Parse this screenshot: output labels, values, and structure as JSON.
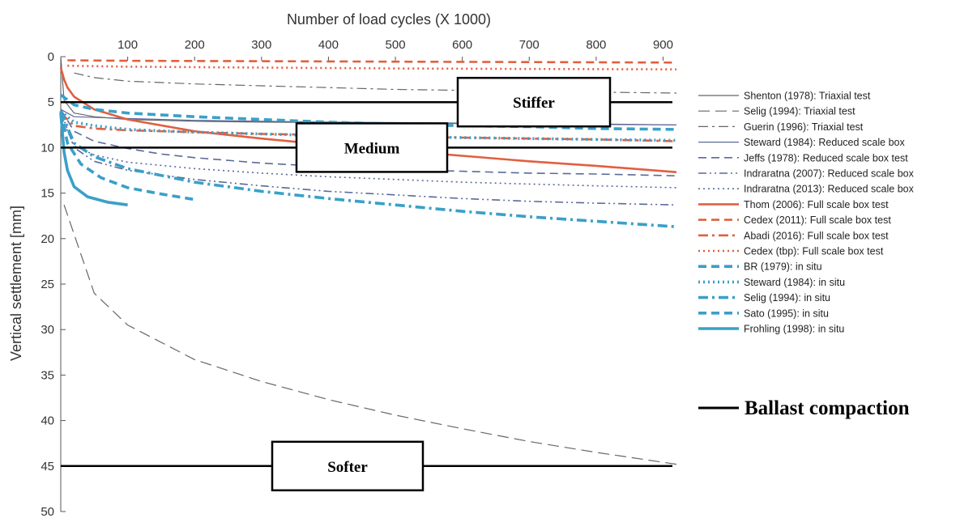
{
  "chart_data": {
    "type": "line",
    "xlabel": "Number of load cycles (X 1000)",
    "ylabel": "Vertical settlement [mm]",
    "xlim": [
      0,
      920
    ],
    "ylim": [
      0,
      50
    ],
    "x_axis_position": "top",
    "y_axis_reversed": true,
    "x_ticks": [
      100,
      200,
      300,
      400,
      500,
      600,
      700,
      800,
      900
    ],
    "y_ticks": [
      0,
      5,
      10,
      15,
      20,
      25,
      30,
      35,
      40,
      45,
      50
    ],
    "grid": false,
    "legend_position": "right",
    "colors": {
      "gray": "#666666",
      "grayblue": "#5a6a9a",
      "red": "#e06040",
      "blue": "#3aa0c8",
      "black": "#000000"
    },
    "series": [
      {
        "name": "Shenton (1978): Triaxial test",
        "color": "gray",
        "style": "solid",
        "width": 1.2,
        "x": [
          0,
          5,
          20,
          50,
          100,
          200,
          300,
          500,
          700,
          920
        ],
        "y": [
          0,
          4.8,
          6.2,
          6.6,
          6.9,
          7.1,
          7.2,
          7.3,
          7.4,
          7.5
        ]
      },
      {
        "name": "Selig (1994): Triaxial test",
        "color": "gray",
        "style": "longdash",
        "width": 1.2,
        "x": [
          5,
          50,
          100,
          200,
          300,
          400,
          500,
          600,
          700,
          800,
          920
        ],
        "y": [
          16.3,
          26,
          29.5,
          33.3,
          35.7,
          37.7,
          39.4,
          40.9,
          42.3,
          43.5,
          44.8
        ]
      },
      {
        "name": "Guerin (1996): Triaxial test",
        "color": "gray",
        "style": "dashdot",
        "width": 1.2,
        "x": [
          20,
          50,
          100,
          200,
          300,
          400,
          500,
          600,
          700,
          800,
          920
        ],
        "y": [
          1.8,
          2.3,
          2.7,
          3,
          3.2,
          3.4,
          3.6,
          3.7,
          3.8,
          3.9,
          4.0
        ]
      },
      {
        "name": "Steward (1984): Reduced scale box",
        "color": "grayblue",
        "style": "solid",
        "width": 1.2,
        "x": [
          0,
          20,
          100,
          200,
          400,
          600,
          800,
          920
        ],
        "y": [
          5.8,
          6.6,
          6.8,
          7.0,
          7.2,
          7.3,
          7.4,
          7.5
        ]
      },
      {
        "name": "Jeffs (1978): Reduced scale box test",
        "color": "grayblue",
        "style": "dashed",
        "width": 1.6,
        "x": [
          0,
          20,
          50,
          100,
          150,
          200,
          300,
          400,
          500,
          600,
          700,
          800,
          920
        ],
        "y": [
          5.8,
          8.2,
          9.3,
          10.1,
          10.7,
          11.1,
          11.7,
          12.1,
          12.4,
          12.6,
          12.8,
          12.9,
          13.1
        ]
      },
      {
        "name": "Indraratna (2007): Reduced scale box",
        "color": "grayblue",
        "style": "dashdotdot",
        "width": 1.6,
        "x": [
          0,
          20,
          50,
          100,
          200,
          300,
          400,
          500,
          600,
          700,
          800,
          920
        ],
        "y": [
          6,
          10,
          11.5,
          12.5,
          13.5,
          14.2,
          14.8,
          15.2,
          15.6,
          15.9,
          16.1,
          16.3
        ]
      },
      {
        "name": "Indraratna (2013): Reduced scale box",
        "color": "grayblue",
        "style": "dotted",
        "width": 1.6,
        "x": [
          0,
          20,
          50,
          100,
          200,
          300,
          400,
          500,
          600,
          700,
          800,
          920
        ],
        "y": [
          6.5,
          9.8,
          10.8,
          11.6,
          12.3,
          12.8,
          13.2,
          13.5,
          13.8,
          14.0,
          14.2,
          14.4
        ]
      },
      {
        "name": "Thom (2006): Full scale box test",
        "color": "red",
        "style": "solid",
        "width": 2.6,
        "x": [
          0,
          5,
          10,
          20,
          50,
          100,
          200,
          300,
          400,
          500,
          600,
          700,
          800,
          920
        ],
        "y": [
          1.2,
          2.5,
          3.4,
          4.4,
          5.8,
          6.9,
          8.2,
          9.0,
          9.7,
          10.3,
          10.9,
          11.5,
          12.0,
          12.7
        ]
      },
      {
        "name": "Cedex (2011): Full scale box test",
        "color": "red",
        "style": "dashed",
        "width": 2.6,
        "x": [
          10,
          100,
          300,
          500,
          700,
          920
        ],
        "y": [
          0.4,
          0.45,
          0.5,
          0.55,
          0.6,
          0.65
        ]
      },
      {
        "name": "Abadi (2016): Full scale box test",
        "color": "red",
        "style": "dashdot",
        "width": 2.6,
        "x": [
          0,
          20,
          50,
          100,
          200,
          300,
          400,
          500,
          600,
          700,
          800,
          920
        ],
        "y": [
          6.2,
          7.6,
          7.9,
          8.1,
          8.3,
          8.5,
          8.6,
          8.8,
          8.9,
          9.0,
          9.1,
          9.3
        ]
      },
      {
        "name": "Cedex (tbp): Full scale box test",
        "color": "red",
        "style": "dotted",
        "width": 2.6,
        "x": [
          10,
          100,
          300,
          500,
          700,
          920
        ],
        "y": [
          1.0,
          1.1,
          1.2,
          1.3,
          1.35,
          1.4
        ]
      },
      {
        "name": "BR (1979): in situ",
        "color": "blue",
        "style": "dashed",
        "width": 3.6,
        "x": [
          0,
          20,
          50,
          100,
          200,
          300,
          400,
          500,
          600,
          700,
          800,
          920
        ],
        "y": [
          4.2,
          5.3,
          5.8,
          6.2,
          6.6,
          6.9,
          7.2,
          7.4,
          7.6,
          7.7,
          7.9,
          8.0
        ]
      },
      {
        "name": "Steward (1984): in situ",
        "color": "blue",
        "style": "dotted",
        "width": 3.6,
        "x": [
          0,
          20,
          50,
          100,
          200,
          300,
          400,
          500,
          600,
          700,
          800,
          920
        ],
        "y": [
          6.0,
          7.2,
          7.6,
          8.0,
          8.3,
          8.5,
          8.7,
          8.8,
          8.9,
          9.0,
          9.1,
          9.2
        ]
      },
      {
        "name": "Selig (1994): in situ",
        "color": "blue",
        "style": "dashdot",
        "width": 3.6,
        "x": [
          0,
          20,
          50,
          100,
          200,
          300,
          400,
          500,
          600,
          700,
          800,
          920
        ],
        "y": [
          6.0,
          9.5,
          11.0,
          12.3,
          13.8,
          14.8,
          15.6,
          16.3,
          17.0,
          17.6,
          18.1,
          18.7
        ]
      },
      {
        "name": "Sato (1995): in situ",
        "color": "blue",
        "style": "dashed",
        "width": 3.6,
        "x": [
          0,
          10,
          30,
          60,
          100,
          150,
          200
        ],
        "y": [
          6.0,
          9.5,
          11.8,
          13.3,
          14.4,
          15.1,
          15.7
        ]
      },
      {
        "name": "Frohling (1998): in situ",
        "color": "blue",
        "style": "solid",
        "width": 3.6,
        "x": [
          0,
          5,
          10,
          20,
          40,
          70,
          100
        ],
        "y": [
          6.2,
          10.5,
          12.5,
          14.3,
          15.4,
          16.0,
          16.3
        ]
      }
    ],
    "ballast_compaction_lines": [
      5,
      10,
      45
    ],
    "ballast_compaction_label": "Ballast compaction",
    "region_labels": [
      {
        "text": "Stiffer",
        "y": 5
      },
      {
        "text": "Medium",
        "y": 10
      },
      {
        "text": "Softer",
        "y": 45
      }
    ]
  }
}
